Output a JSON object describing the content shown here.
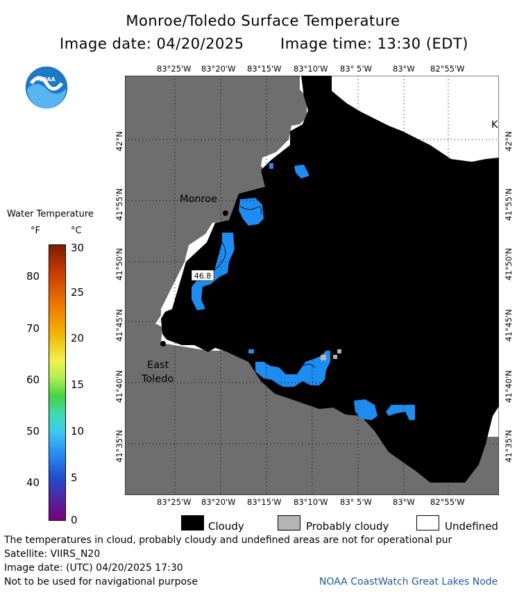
{
  "title": "Monroe/Toledo Surface Temperature",
  "subtitle": {
    "date": "Image date: 04/20/2025",
    "time": "Image time: 13:30 (EDT)"
  },
  "logo": "NOAA",
  "lon_ticks": [
    "83°25'W",
    "83°20'W",
    "83°15'W",
    "83°10'W",
    "83° 5'W",
    "83°W",
    "82°55'W"
  ],
  "lat_ticks": [
    "42°N",
    "41°55'N",
    "41°50'N",
    "41°45'N",
    "41°40'N",
    "41°35'N"
  ],
  "places": {
    "monroe": "Monroe",
    "east_toledo_1": "East",
    "east_toledo_2": "Toledo",
    "k_label": "K"
  },
  "sample_value": "46.8",
  "colorbar": {
    "title": "Water Temperature",
    "unit_f": "°F",
    "unit_c": "°C",
    "f_ticks": [
      "80",
      "70",
      "60",
      "50",
      "40"
    ],
    "c_ticks": [
      "30",
      "25",
      "20",
      "15",
      "10",
      "5",
      "0"
    ],
    "range_c": [
      0,
      30
    ]
  },
  "map_legend": {
    "cloudy": "Cloudy",
    "probably_cloudy": "Probably cloudy",
    "undefined": "Undefined"
  },
  "footer": {
    "disclaimer": "The temperatures in cloud, probably cloudy and undefined areas are not for operational pur",
    "satellite": "Satellite: VIIRS_N20",
    "utc_date": "Image date: (UTC) 04/20/2025  17:30",
    "nav": "Not to be used for navigational purpose",
    "source": "NOAA CoastWatch Great Lakes Node"
  },
  "colors": {
    "land": "#6e6e6e",
    "cloud": "#000000",
    "probably_cloudy": "#b4b4b4",
    "undefined": "#ffffff",
    "water_warm": "#1e8cf0",
    "water_light": "#4aaaf0"
  }
}
